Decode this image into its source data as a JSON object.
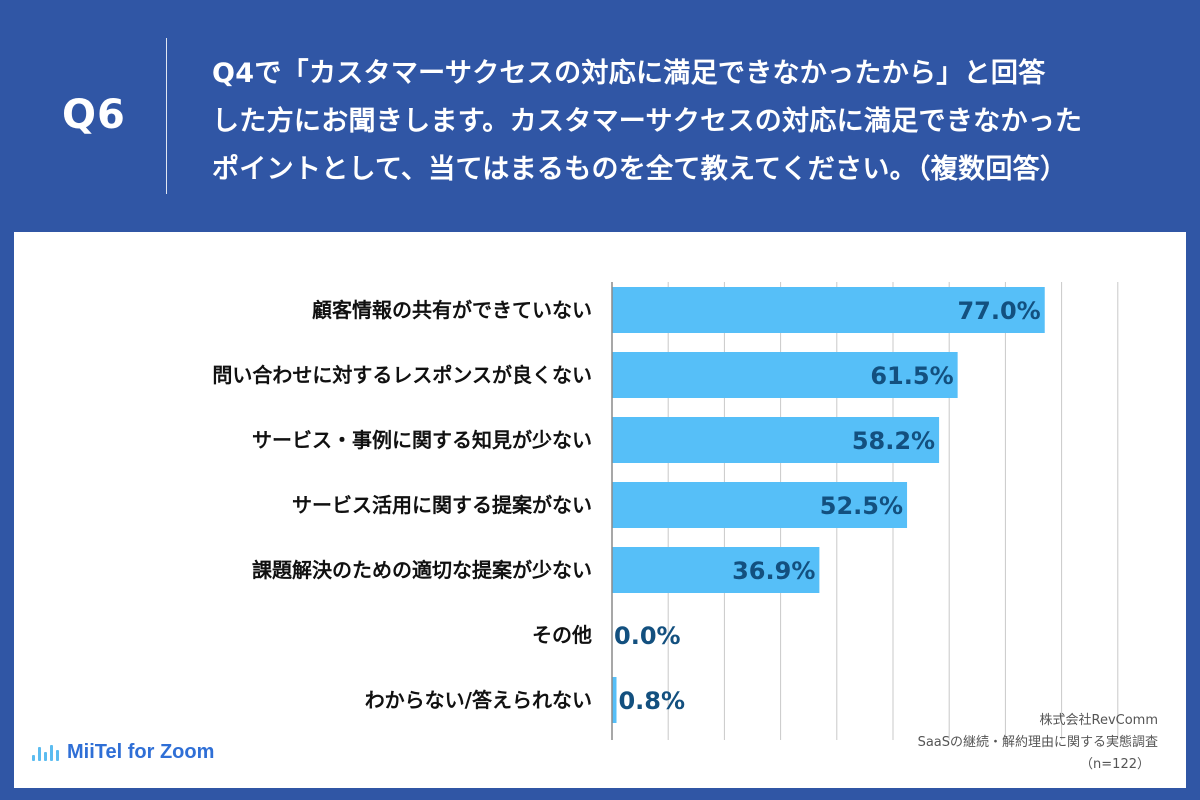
{
  "header": {
    "q_number": "Q6",
    "question_line1": "Q4で「カスタマーサクセスの対応に満足できなかったから」と回答",
    "question_line2": "した方にお聞きします。カスタマーサクセスの対応に満足できなかった",
    "question_line3": "ポイントとして、当てはまるものを全て教えてください。（複数回答）"
  },
  "chart_data": {
    "type": "bar",
    "orientation": "horizontal",
    "categories": [
      "顧客情報の共有ができていない",
      "問い合わせに対するレスポンスが良くない",
      "サービス・事例に関する知見が少ない",
      "サービス活用に関する提案がない",
      "課題解決のための適切な提案が少ない",
      "その他",
      "わからない/答えられない"
    ],
    "values": [
      77.0,
      61.5,
      58.2,
      52.5,
      36.9,
      0.0,
      0.8
    ],
    "value_labels": [
      "77.0%",
      "61.5%",
      "58.2%",
      "52.5%",
      "36.9%",
      "0.0%",
      "0.8%"
    ],
    "xlim": [
      0,
      100
    ],
    "grid": true,
    "bar_color": "#56bff8",
    "value_color": "#13507f"
  },
  "footer": {
    "logo_text": "MiiTel for Zoom",
    "credit_company": "株式会社RevComm",
    "credit_survey": "SaaSの継続・解約理由に関する実態調査",
    "credit_n": "（n=122）"
  }
}
